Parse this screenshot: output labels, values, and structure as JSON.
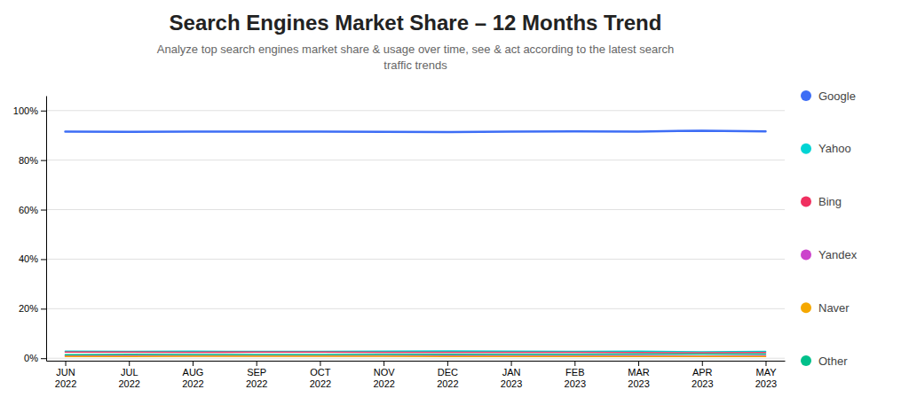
{
  "chart_data": {
    "type": "line",
    "title": "Search Engines Market Share – 12 Months Trend",
    "subtitle": "Analyze top search engines market share & usage over time, see & act according to the latest search\ntraffic trends",
    "categories": [
      "JUN\n2022",
      "JUL\n2022",
      "AUG\n2022",
      "SEP\n2022",
      "OCT\n2022",
      "NOV\n2022",
      "DEC\n2022",
      "JAN\n2023",
      "FEB\n2023",
      "MAR\n2023",
      "APR\n2023",
      "MAY\n2023"
    ],
    "series": [
      {
        "name": "Google",
        "color": "#3d6df5",
        "values": [
          91.5,
          91.4,
          91.5,
          91.5,
          91.5,
          91.4,
          91.3,
          91.5,
          91.6,
          91.5,
          91.9,
          91.6
        ]
      },
      {
        "name": "Yahoo",
        "color": "#00d4d4",
        "values": [
          2.8,
          2.7,
          2.8,
          2.7,
          2.7,
          2.8,
          2.9,
          2.8,
          2.7,
          2.8,
          2.6,
          2.7
        ]
      },
      {
        "name": "Bing",
        "color": "#f03060",
        "values": [
          2.5,
          2.5,
          2.4,
          2.5,
          2.5,
          2.4,
          2.4,
          2.4,
          2.4,
          2.3,
          2.2,
          2.3
        ]
      },
      {
        "name": "Yandex",
        "color": "#cc44cc",
        "values": [
          1.1,
          1.1,
          1.0,
          1.0,
          1.0,
          1.0,
          1.1,
          1.0,
          1.0,
          1.0,
          0.9,
          1.0
        ]
      },
      {
        "name": "Naver",
        "color": "#f5a800",
        "values": [
          0.7,
          0.7,
          0.8,
          0.8,
          0.8,
          0.8,
          0.7,
          0.7,
          0.7,
          0.7,
          0.7,
          0.7
        ]
      },
      {
        "name": "Other",
        "color": "#00c08a",
        "values": [
          1.4,
          1.6,
          1.5,
          1.5,
          1.5,
          1.6,
          1.6,
          1.6,
          1.6,
          1.7,
          1.7,
          1.7
        ]
      }
    ],
    "ylim": [
      -1,
      106
    ],
    "yticks": [
      {
        "value": 0,
        "label": "0%"
      },
      {
        "value": 20,
        "label": "20%"
      },
      {
        "value": 40,
        "label": "40%"
      },
      {
        "value": 60,
        "label": "60%"
      },
      {
        "value": 80,
        "label": "80%"
      },
      {
        "value": 100,
        "label": "100%"
      }
    ],
    "grid": true,
    "legend": "right"
  }
}
